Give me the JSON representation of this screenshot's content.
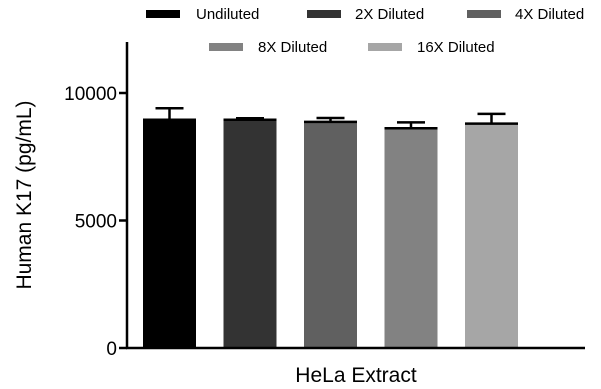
{
  "chart_data": {
    "type": "bar",
    "title": "",
    "xlabel": "HeLa Extract",
    "ylabel": "Human K17 (pg/mL)",
    "ylim": [
      0,
      12000
    ],
    "yticks": [
      0,
      5000,
      10000
    ],
    "categories": [
      "HeLa Extract"
    ],
    "series": [
      {
        "name": "Undiluted",
        "values": [
          8950
        ],
        "error": [
          450
        ],
        "color": "#000000"
      },
      {
        "name": "2X Diluted",
        "values": [
          8950
        ],
        "error": [
          60
        ],
        "color": "#333333"
      },
      {
        "name": "4X Diluted",
        "values": [
          8870
        ],
        "error": [
          150
        ],
        "color": "#606060"
      },
      {
        "name": "8X Diluted",
        "values": [
          8620
        ],
        "error": [
          230
        ],
        "color": "#828282"
      },
      {
        "name": "16X Diluted",
        "values": [
          8800
        ],
        "error": [
          380
        ],
        "color": "#a6a6a6"
      }
    ],
    "legend_position": "top",
    "grid": false
  }
}
